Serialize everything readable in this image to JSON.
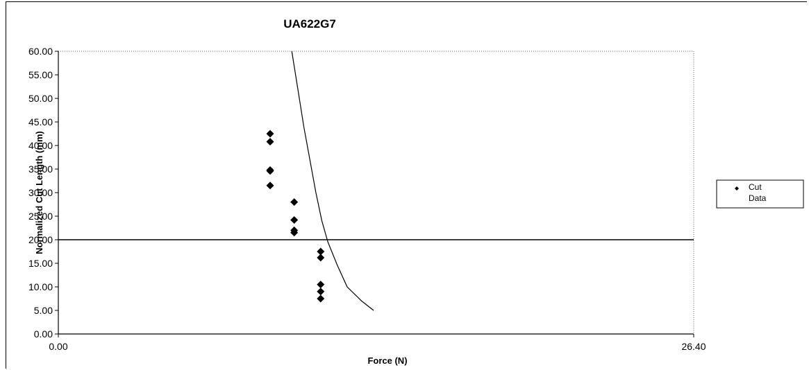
{
  "chart_data": {
    "type": "scatter",
    "title": "UA622G7",
    "xlabel": "Force (N)",
    "ylabel": "Normalized Cut Length (mm)",
    "xlim": [
      0,
      26.4
    ],
    "ylim": [
      0,
      60
    ],
    "x_tick_labels": [
      "0.00",
      "26.40"
    ],
    "y_tick_labels": [
      "0.00",
      "5.00",
      "10.00",
      "15.00",
      "20.00",
      "25.00",
      "30.00",
      "35.00",
      "40.00",
      "45.00",
      "50.00",
      "55.00",
      "60.00"
    ],
    "grid": false,
    "legend_position": "right",
    "reference_line_y": 20,
    "series": [
      {
        "name": "Cut Data",
        "marker": "diamond",
        "color": "#000000",
        "points": [
          [
            8.8,
            42.5
          ],
          [
            8.8,
            40.8
          ],
          [
            8.8,
            34.8
          ],
          [
            8.8,
            34.6
          ],
          [
            8.8,
            31.5
          ],
          [
            9.8,
            28.0
          ],
          [
            9.8,
            24.2
          ],
          [
            9.8,
            22.0
          ],
          [
            9.8,
            21.5
          ],
          [
            10.9,
            17.5
          ],
          [
            10.9,
            16.2
          ],
          [
            10.9,
            10.5
          ],
          [
            10.9,
            9.0
          ],
          [
            10.9,
            7.5
          ]
        ]
      }
    ],
    "fit_curve": {
      "color": "#000000",
      "points": [
        [
          9.7,
          60
        ],
        [
          9.95,
          52
        ],
        [
          10.2,
          44
        ],
        [
          10.45,
          37
        ],
        [
          10.7,
          30
        ],
        [
          10.95,
          24
        ],
        [
          11.2,
          19.5
        ],
        [
          11.6,
          14.5
        ],
        [
          12.0,
          10
        ],
        [
          12.6,
          7
        ],
        [
          13.1,
          5
        ]
      ]
    }
  }
}
